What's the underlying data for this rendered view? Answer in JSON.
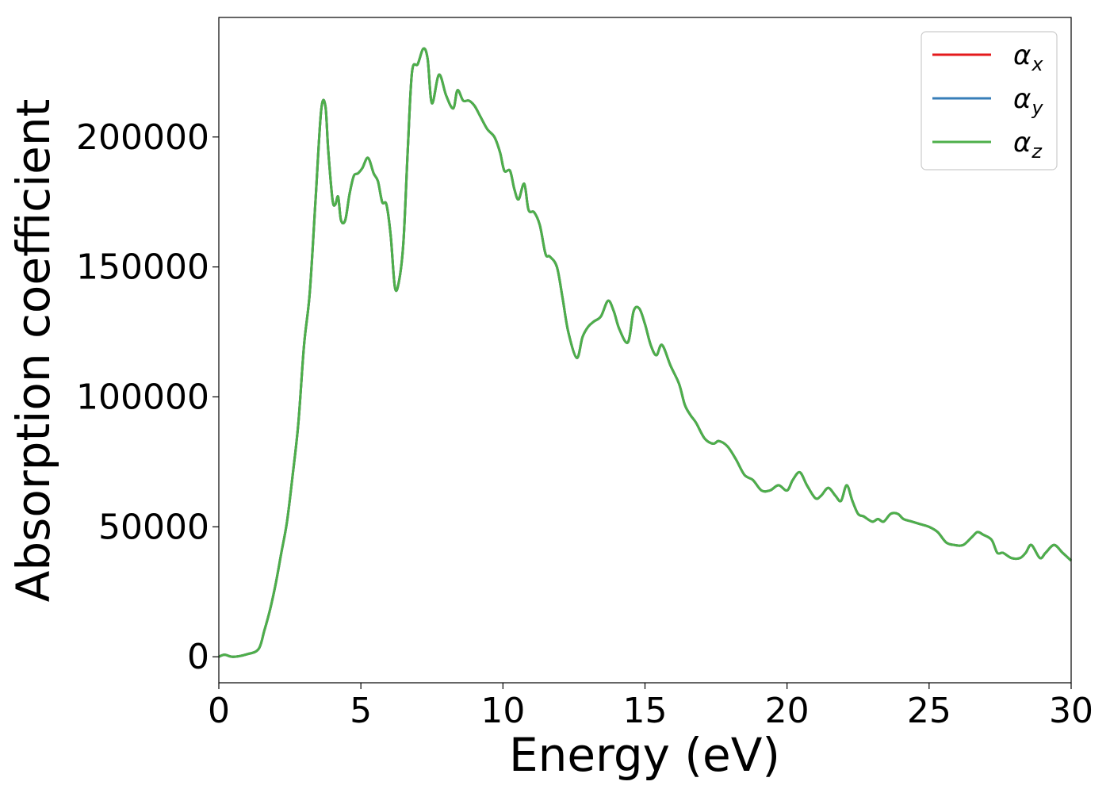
{
  "chart_data": {
    "type": "line",
    "title": "",
    "xlabel": "Energy (eV)",
    "ylabel": "Absorption coefficient",
    "xlim": [
      0,
      30
    ],
    "ylim": [
      -10000,
      246000
    ],
    "xticks": [
      0,
      5,
      10,
      15,
      20,
      25,
      30
    ],
    "xtick_labels": [
      "0",
      "5",
      "10",
      "15",
      "20",
      "25",
      "30"
    ],
    "yticks": [
      0,
      50000,
      100000,
      150000,
      200000
    ],
    "ytick_labels": [
      "0",
      "50000",
      "100000",
      "150000",
      "200000"
    ],
    "grid": false,
    "legend_position": "top-right",
    "series": [
      {
        "name": "αx",
        "legend_symbol": "α",
        "legend_subscript": "x",
        "color": "#e41a1c",
        "x": [
          0,
          0.2,
          0.5,
          1.0,
          1.4,
          1.6,
          1.8,
          2.0,
          2.2,
          2.4,
          2.6,
          2.8,
          3.0,
          3.2,
          3.4,
          3.6,
          3.75,
          3.85,
          4.0,
          4.1,
          4.2,
          4.3,
          4.45,
          4.6,
          4.75,
          4.9,
          5.05,
          5.25,
          5.45,
          5.6,
          5.75,
          5.9,
          6.05,
          6.2,
          6.35,
          6.5,
          6.65,
          6.8,
          7.0,
          7.2,
          7.35,
          7.5,
          7.75,
          8.0,
          8.25,
          8.4,
          8.6,
          8.8,
          9.0,
          9.2,
          9.45,
          9.7,
          9.9,
          10.05,
          10.25,
          10.4,
          10.55,
          10.75,
          10.9,
          11.1,
          11.3,
          11.5,
          11.65,
          11.9,
          12.1,
          12.3,
          12.6,
          12.8,
          13.0,
          13.2,
          13.45,
          13.7,
          13.9,
          14.1,
          14.4,
          14.6,
          14.8,
          15.0,
          15.2,
          15.4,
          15.6,
          15.9,
          16.2,
          16.4,
          16.6,
          16.8,
          17.1,
          17.4,
          17.6,
          17.9,
          18.2,
          18.5,
          18.8,
          19.1,
          19.4,
          19.7,
          20.0,
          20.2,
          20.45,
          20.7,
          21.0,
          21.2,
          21.45,
          21.7,
          21.9,
          22.1,
          22.3,
          22.5,
          22.7,
          23.0,
          23.2,
          23.4,
          23.65,
          23.9,
          24.1,
          24.4,
          24.7,
          25.0,
          25.3,
          25.6,
          25.9,
          26.2,
          26.5,
          26.7,
          26.9,
          27.2,
          27.4,
          27.6,
          27.9,
          28.2,
          28.4,
          28.6,
          28.9,
          29.1,
          29.4,
          29.7,
          30.0
        ],
        "y": [
          0,
          800,
          0,
          1000,
          3000,
          10000,
          18000,
          28000,
          40000,
          52000,
          70000,
          90000,
          120000,
          140000,
          175000,
          210000,
          212000,
          195000,
          176000,
          174000,
          177000,
          168000,
          168000,
          178000,
          185000,
          186000,
          188000,
          192000,
          186000,
          183000,
          175000,
          174000,
          162000,
          142000,
          145000,
          160000,
          195000,
          225000,
          228000,
          234000,
          230000,
          213000,
          224000,
          216000,
          211000,
          218000,
          214000,
          214000,
          212000,
          208000,
          203000,
          200000,
          194000,
          187000,
          187000,
          180000,
          176000,
          182000,
          172000,
          171000,
          166000,
          155000,
          154000,
          150000,
          138000,
          125000,
          115000,
          123000,
          127000,
          129000,
          131000,
          137000,
          133000,
          126000,
          121000,
          133000,
          134000,
          128000,
          120000,
          116000,
          120000,
          112000,
          105000,
          97000,
          93000,
          90000,
          84000,
          82000,
          83000,
          81000,
          76000,
          70000,
          68000,
          64000,
          64000,
          66000,
          64000,
          68000,
          71000,
          66000,
          61000,
          62000,
          65000,
          62000,
          60000,
          66000,
          60000,
          55000,
          54000,
          52000,
          53000,
          52000,
          55000,
          55000,
          53000,
          52000,
          51000,
          50000,
          48000,
          44000,
          43000,
          43000,
          46000,
          48000,
          47000,
          45000,
          40000,
          40000,
          38000,
          38000,
          40000,
          43000,
          38000,
          40000,
          43000,
          40000,
          37000
        ]
      },
      {
        "name": "αy",
        "legend_symbol": "α",
        "legend_subscript": "y",
        "color": "#377eb8",
        "x": [
          0,
          0.2,
          0.5,
          1.0,
          1.4,
          1.6,
          1.8,
          2.0,
          2.2,
          2.4,
          2.6,
          2.8,
          3.0,
          3.2,
          3.4,
          3.6,
          3.75,
          3.85,
          4.0,
          4.1,
          4.2,
          4.3,
          4.45,
          4.6,
          4.75,
          4.9,
          5.05,
          5.25,
          5.45,
          5.6,
          5.75,
          5.9,
          6.05,
          6.2,
          6.35,
          6.5,
          6.65,
          6.8,
          7.0,
          7.2,
          7.35,
          7.5,
          7.75,
          8.0,
          8.25,
          8.4,
          8.6,
          8.8,
          9.0,
          9.2,
          9.45,
          9.7,
          9.9,
          10.05,
          10.25,
          10.4,
          10.55,
          10.75,
          10.9,
          11.1,
          11.3,
          11.5,
          11.65,
          11.9,
          12.1,
          12.3,
          12.6,
          12.8,
          13.0,
          13.2,
          13.45,
          13.7,
          13.9,
          14.1,
          14.4,
          14.6,
          14.8,
          15.0,
          15.2,
          15.4,
          15.6,
          15.9,
          16.2,
          16.4,
          16.6,
          16.8,
          17.1,
          17.4,
          17.6,
          17.9,
          18.2,
          18.5,
          18.8,
          19.1,
          19.4,
          19.7,
          20.0,
          20.2,
          20.45,
          20.7,
          21.0,
          21.2,
          21.45,
          21.7,
          21.9,
          22.1,
          22.3,
          22.5,
          22.7,
          23.0,
          23.2,
          23.4,
          23.65,
          23.9,
          24.1,
          24.4,
          24.7,
          25.0,
          25.3,
          25.6,
          25.9,
          26.2,
          26.5,
          26.7,
          26.9,
          27.2,
          27.4,
          27.6,
          27.9,
          28.2,
          28.4,
          28.6,
          28.9,
          29.1,
          29.4,
          29.7,
          30.0
        ],
        "y": [
          0,
          800,
          0,
          1000,
          3000,
          10000,
          18000,
          28000,
          40000,
          52000,
          70000,
          90000,
          120000,
          140000,
          175000,
          210000,
          212000,
          195000,
          176000,
          174000,
          177000,
          168000,
          168000,
          178000,
          185000,
          186000,
          188000,
          192000,
          186000,
          183000,
          175000,
          174000,
          162000,
          142000,
          145000,
          160000,
          195000,
          225000,
          228000,
          234000,
          230000,
          213000,
          224000,
          216000,
          211000,
          218000,
          214000,
          214000,
          212000,
          208000,
          203000,
          200000,
          194000,
          187000,
          187000,
          180000,
          176000,
          182000,
          172000,
          171000,
          166000,
          155000,
          154000,
          150000,
          138000,
          125000,
          115000,
          123000,
          127000,
          129000,
          131000,
          137000,
          133000,
          126000,
          121000,
          133000,
          134000,
          128000,
          120000,
          116000,
          120000,
          112000,
          105000,
          97000,
          93000,
          90000,
          84000,
          82000,
          83000,
          81000,
          76000,
          70000,
          68000,
          64000,
          64000,
          66000,
          64000,
          68000,
          71000,
          66000,
          61000,
          62000,
          65000,
          62000,
          60000,
          66000,
          60000,
          55000,
          54000,
          52000,
          53000,
          52000,
          55000,
          55000,
          53000,
          52000,
          51000,
          50000,
          48000,
          44000,
          43000,
          43000,
          46000,
          48000,
          47000,
          45000,
          40000,
          40000,
          38000,
          38000,
          40000,
          43000,
          38000,
          40000,
          43000,
          40000,
          37000
        ]
      },
      {
        "name": "αz",
        "legend_symbol": "α",
        "legend_subscript": "z",
        "color": "#4daf4a",
        "x": [
          0,
          0.2,
          0.5,
          1.0,
          1.4,
          1.6,
          1.8,
          2.0,
          2.2,
          2.4,
          2.6,
          2.8,
          3.0,
          3.2,
          3.4,
          3.6,
          3.75,
          3.85,
          4.0,
          4.1,
          4.2,
          4.3,
          4.45,
          4.6,
          4.75,
          4.9,
          5.05,
          5.25,
          5.45,
          5.6,
          5.75,
          5.9,
          6.05,
          6.2,
          6.35,
          6.5,
          6.65,
          6.8,
          7.0,
          7.2,
          7.35,
          7.5,
          7.75,
          8.0,
          8.25,
          8.4,
          8.6,
          8.8,
          9.0,
          9.2,
          9.45,
          9.7,
          9.9,
          10.05,
          10.25,
          10.4,
          10.55,
          10.75,
          10.9,
          11.1,
          11.3,
          11.5,
          11.65,
          11.9,
          12.1,
          12.3,
          12.6,
          12.8,
          13.0,
          13.2,
          13.45,
          13.7,
          13.9,
          14.1,
          14.4,
          14.6,
          14.8,
          15.0,
          15.2,
          15.4,
          15.6,
          15.9,
          16.2,
          16.4,
          16.6,
          16.8,
          17.1,
          17.4,
          17.6,
          17.9,
          18.2,
          18.5,
          18.8,
          19.1,
          19.4,
          19.7,
          20.0,
          20.2,
          20.45,
          20.7,
          21.0,
          21.2,
          21.45,
          21.7,
          21.9,
          22.1,
          22.3,
          22.5,
          22.7,
          23.0,
          23.2,
          23.4,
          23.65,
          23.9,
          24.1,
          24.4,
          24.7,
          25.0,
          25.3,
          25.6,
          25.9,
          26.2,
          26.5,
          26.7,
          26.9,
          27.2,
          27.4,
          27.6,
          27.9,
          28.2,
          28.4,
          28.6,
          28.9,
          29.1,
          29.4,
          29.7,
          30.0
        ],
        "y": [
          0,
          800,
          0,
          1000,
          3000,
          10000,
          18000,
          28000,
          40000,
          52000,
          70000,
          90000,
          120000,
          140000,
          175000,
          210000,
          212000,
          195000,
          176000,
          174000,
          177000,
          168000,
          168000,
          178000,
          185000,
          186000,
          188000,
          192000,
          186000,
          183000,
          175000,
          174000,
          162000,
          142000,
          145000,
          160000,
          195000,
          225000,
          228000,
          234000,
          230000,
          213000,
          224000,
          216000,
          211000,
          218000,
          214000,
          214000,
          212000,
          208000,
          203000,
          200000,
          194000,
          187000,
          187000,
          180000,
          176000,
          182000,
          172000,
          171000,
          166000,
          155000,
          154000,
          150000,
          138000,
          125000,
          115000,
          123000,
          127000,
          129000,
          131000,
          137000,
          133000,
          126000,
          121000,
          133000,
          134000,
          128000,
          120000,
          116000,
          120000,
          112000,
          105000,
          97000,
          93000,
          90000,
          84000,
          82000,
          83000,
          81000,
          76000,
          70000,
          68000,
          64000,
          64000,
          66000,
          64000,
          68000,
          71000,
          66000,
          61000,
          62000,
          65000,
          62000,
          60000,
          66000,
          60000,
          55000,
          54000,
          52000,
          53000,
          52000,
          55000,
          55000,
          53000,
          52000,
          51000,
          50000,
          48000,
          44000,
          43000,
          43000,
          46000,
          48000,
          47000,
          45000,
          40000,
          40000,
          38000,
          38000,
          40000,
          43000,
          38000,
          40000,
          43000,
          40000,
          37000
        ]
      }
    ]
  }
}
